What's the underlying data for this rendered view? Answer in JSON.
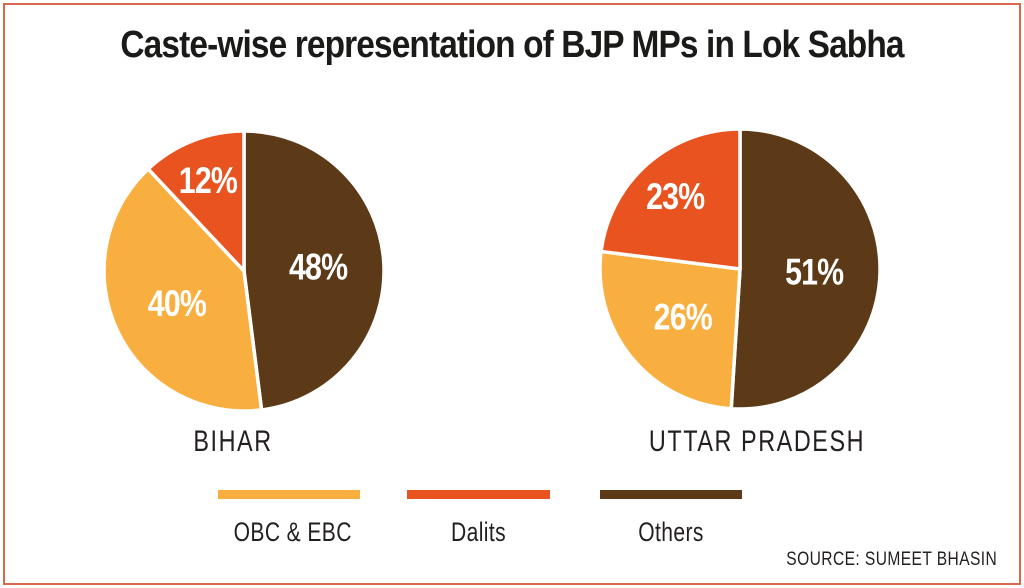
{
  "title": "Caste-wise representation of BJP MPs in Lok Sabha",
  "source": "SOURCE: SUMEET BHASIN",
  "colors": {
    "obc_ebc": "#F9AF3F",
    "dalits": "#E8531F",
    "others": "#5C3917",
    "border": "#D9684E",
    "text": "#231F20",
    "slice_label": "#FFFFFF",
    "background": "#FFFFFF"
  },
  "legend": [
    {
      "label": "OBC & EBC",
      "color_key": "obc_ebc"
    },
    {
      "label": "Dalits",
      "color_key": "dalits"
    },
    {
      "label": "Others",
      "color_key": "others"
    }
  ],
  "chart_data": [
    {
      "type": "pie",
      "title": "BIHAR",
      "start_angle_deg": 0,
      "direction": "clockwise",
      "slices": [
        {
          "label": "Others",
          "value": 48,
          "display": "48%",
          "color_key": "others"
        },
        {
          "label": "OBC & EBC",
          "value": 40,
          "display": "40%",
          "color_key": "obc_ebc"
        },
        {
          "label": "Dalits",
          "value": 12,
          "display": "12%",
          "color_key": "dalits"
        }
      ]
    },
    {
      "type": "pie",
      "title": "UTTAR PRADESH",
      "start_angle_deg": 0,
      "direction": "clockwise",
      "slices": [
        {
          "label": "Others",
          "value": 51,
          "display": "51%",
          "color_key": "others"
        },
        {
          "label": "OBC & EBC",
          "value": 26,
          "display": "26%",
          "color_key": "obc_ebc"
        },
        {
          "label": "Dalits",
          "value": 23,
          "display": "23%",
          "color_key": "dalits"
        }
      ]
    }
  ]
}
